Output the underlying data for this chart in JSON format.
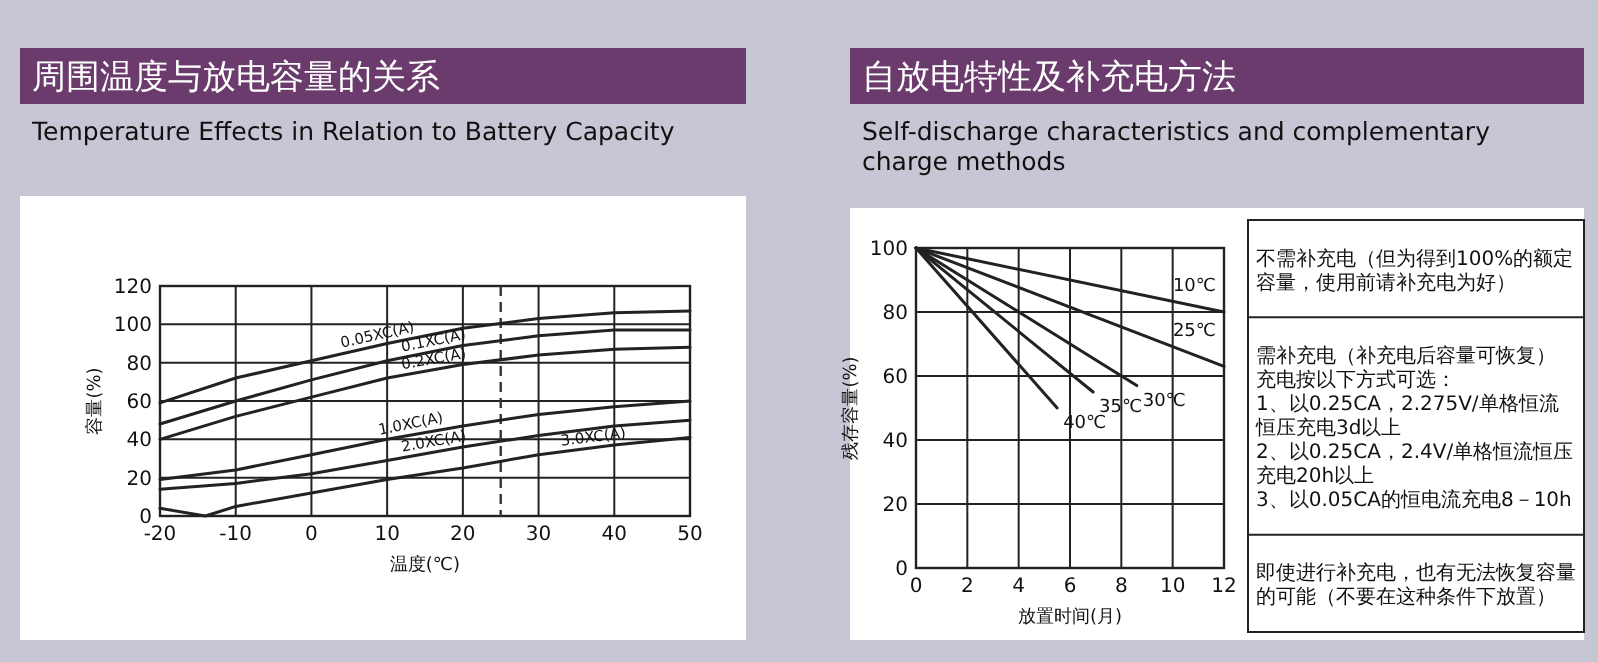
{
  "chart_data": [
    {
      "type": "line",
      "title": "周围温度与放电容量的关系",
      "subtitle": "Temperature Effects in Relation to Battery Capacity",
      "xlabel": "温度(℃)",
      "ylabel": "容量(%)",
      "xlim": [
        -20,
        50
      ],
      "ylim": [
        0,
        120
      ],
      "xticks": [
        -20,
        -10,
        0,
        10,
        20,
        30,
        40,
        50
      ],
      "yticks": [
        0,
        20,
        40,
        60,
        80,
        100,
        120
      ],
      "grid": true,
      "ref_lines": [
        {
          "axis": "x",
          "value": 25,
          "line_style": "dashed",
          "color": "#333333"
        }
      ],
      "x": [
        -20,
        -10,
        0,
        10,
        20,
        30,
        40,
        50
      ],
      "series": [
        {
          "name": "0.05XC(A)",
          "color": "#222222",
          "values": [
            59,
            72,
            81,
            90,
            98,
            103,
            106,
            107
          ]
        },
        {
          "name": "0.1XC(A)",
          "color": "#222222",
          "values": [
            48,
            60,
            71,
            81,
            89,
            94,
            97,
            97
          ]
        },
        {
          "name": "0.2XC(A)",
          "color": "#222222",
          "values": [
            40,
            52,
            62,
            72,
            79,
            84,
            87,
            88
          ]
        },
        {
          "name": "1.0XC(A)",
          "color": "#222222",
          "values": [
            19,
            24,
            32,
            40,
            47,
            53,
            57,
            60
          ]
        },
        {
          "name": "2.0XC(A)",
          "color": "#222222",
          "values": [
            14,
            17,
            22,
            29,
            36,
            42,
            47,
            50
          ]
        },
        {
          "name": "3.0XC(A)",
          "color": "#222222",
          "x": [
            -20,
            -14,
            -10,
            0,
            10,
            20,
            30,
            40,
            50
          ],
          "values": [
            4,
            0,
            5,
            12,
            19,
            25,
            32,
            37,
            41
          ]
        }
      ]
    },
    {
      "type": "line",
      "title": "自放电特性及补充电方法",
      "subtitle": "Self-discharge characteristics and complementary charge methods",
      "xlabel": "放置时间(月)",
      "ylabel": "残存容量(%)",
      "xlim": [
        0,
        12
      ],
      "ylim": [
        0,
        100
      ],
      "xticks": [
        0,
        2,
        4,
        6,
        8,
        10,
        12
      ],
      "yticks": [
        0,
        20,
        40,
        60,
        80,
        100
      ],
      "grid": true,
      "series": [
        {
          "name": "10℃",
          "color": "#222222",
          "x": [
            0,
            12
          ],
          "values": [
            100,
            80
          ]
        },
        {
          "name": "25℃",
          "color": "#222222",
          "x": [
            0,
            12
          ],
          "values": [
            100,
            63
          ]
        },
        {
          "name": "30℃",
          "color": "#222222",
          "x": [
            0,
            8.6
          ],
          "values": [
            100,
            57
          ]
        },
        {
          "name": "35℃",
          "color": "#222222",
          "x": [
            0,
            6.9
          ],
          "values": [
            100,
            55
          ]
        },
        {
          "name": "40℃",
          "color": "#222222",
          "x": [
            0,
            5.5
          ],
          "values": [
            100,
            50
          ]
        }
      ],
      "annotations": [
        "不需补充电（但为得到100%的额定容量，使用前请补充电为好）",
        "需补充电（补充电后容量可恢复）",
        "充电按以下方式可选：",
        "1、以0.25CA，2.275V/单格恒流恒压充电3d以上",
        "2、以0.25CA，2.4V/单格恒流恒压充电20h以上",
        "3、以0.05CA的恒电流充电8－10h",
        "即使进行补充电，也有无法恢复容量的可能（不要在这种条件下放置）"
      ]
    }
  ]
}
